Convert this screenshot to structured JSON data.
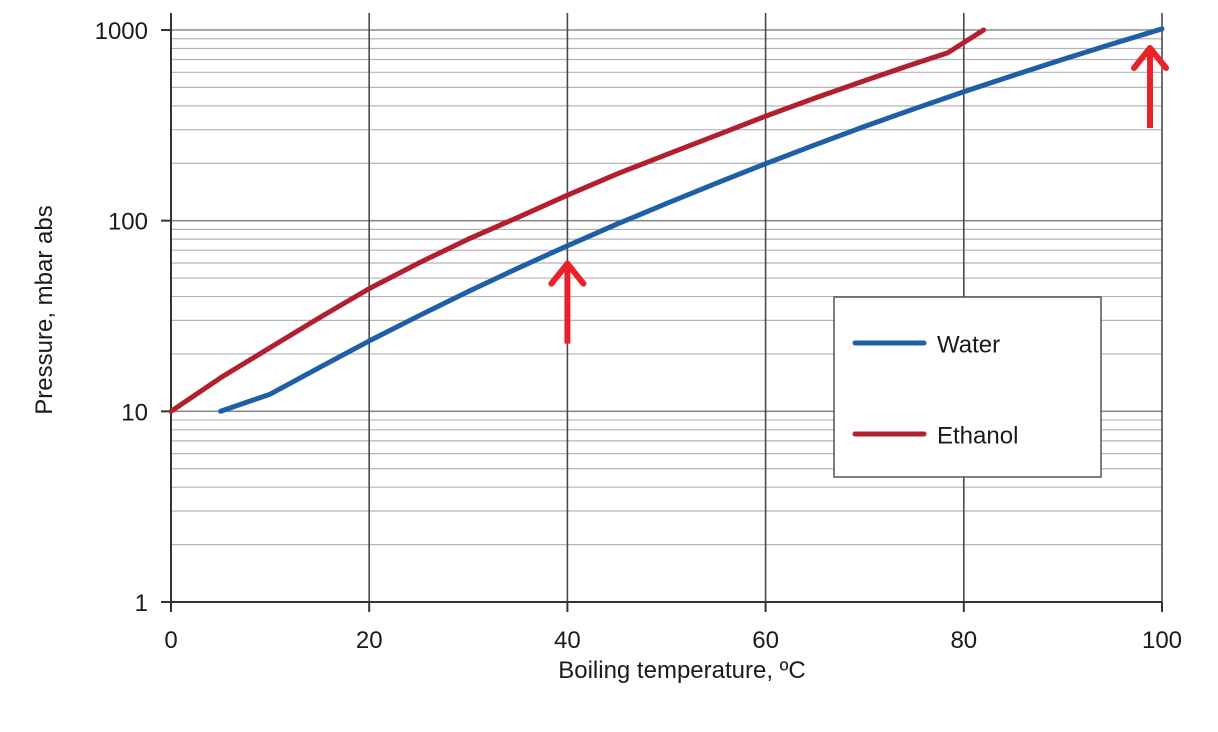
{
  "chart_data": {
    "type": "line",
    "xlabel": "Boiling temperature, ºC",
    "ylabel": "Pressure, mbar abs",
    "xlim": [
      0,
      100
    ],
    "ylim": [
      1,
      1000
    ],
    "yscale": "log",
    "x_ticks": [
      "0",
      "20",
      "40",
      "60",
      "80",
      "100"
    ],
    "y_ticks": [
      "1",
      "10",
      "100",
      "1000"
    ],
    "grid": true,
    "legend_position": "right-middle",
    "series": [
      {
        "name": "Water",
        "color": "#1f5fa6",
        "points": [
          [
            5,
            10
          ],
          [
            10,
            12.3
          ],
          [
            15,
            17
          ],
          [
            20,
            23.4
          ],
          [
            25,
            31.7
          ],
          [
            30,
            42.5
          ],
          [
            35,
            56.3
          ],
          [
            40,
            73.8
          ],
          [
            45,
            95.9
          ],
          [
            50,
            123
          ],
          [
            55,
            157
          ],
          [
            60,
            199
          ],
          [
            65,
            250
          ],
          [
            70,
            312
          ],
          [
            75,
            386
          ],
          [
            80,
            474
          ],
          [
            85,
            578
          ],
          [
            90,
            701
          ],
          [
            95,
            845
          ],
          [
            100,
            1013
          ]
        ]
      },
      {
        "name": "Ethanol",
        "color": "#b22030",
        "points": [
          [
            0,
            10
          ],
          [
            5,
            15
          ],
          [
            10,
            21.6
          ],
          [
            15,
            31
          ],
          [
            20,
            44
          ],
          [
            25,
            60
          ],
          [
            30,
            80
          ],
          [
            35,
            104
          ],
          [
            40,
            136
          ],
          [
            45,
            176
          ],
          [
            50,
            222
          ],
          [
            55,
            280
          ],
          [
            60,
            353
          ],
          [
            65,
            440
          ],
          [
            70,
            543
          ],
          [
            75,
            666
          ],
          [
            78.4,
            760
          ],
          [
            82,
            1000
          ]
        ]
      }
    ],
    "annotations": [
      {
        "type": "arrow",
        "x": 40,
        "y": 74,
        "color": "#e8212b"
      },
      {
        "type": "arrow",
        "x": 100,
        "y": 1000,
        "color": "#e8212b"
      }
    ]
  }
}
